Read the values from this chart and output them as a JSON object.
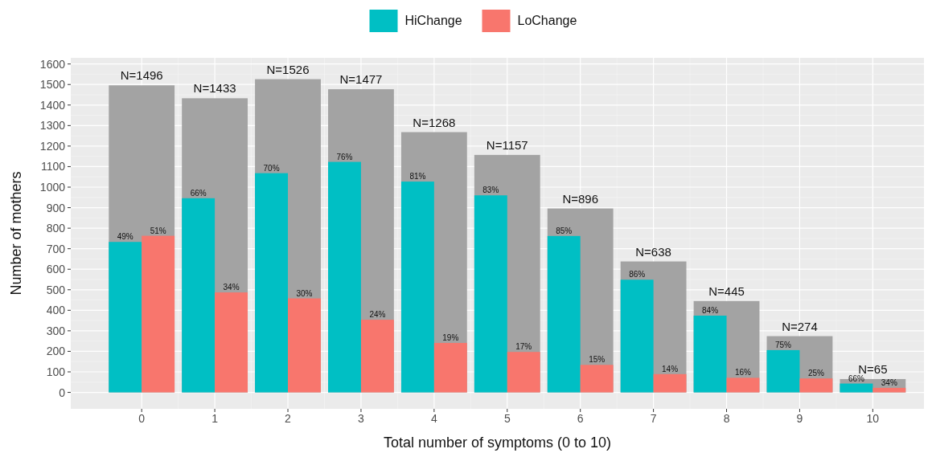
{
  "chart_data": {
    "type": "bar",
    "xlabel": "Total number of symptoms (0 to 10)",
    "ylabel": "Number of mothers",
    "x": [
      0,
      1,
      2,
      3,
      4,
      5,
      6,
      7,
      8,
      9,
      10
    ],
    "series": [
      {
        "color": "#a3a3a3",
        "values": [
          1496,
          1433,
          1526,
          1477,
          1268,
          1157,
          896,
          638,
          445,
          274,
          65
        ],
        "value_labels": [
          "N=1496",
          "N=1433",
          "N=1526",
          "N=1477",
          "N=1268",
          "N=1157",
          "N=896",
          "N=638",
          "N=445",
          "N=274",
          "N=65"
        ]
      },
      {
        "name": "HiChange",
        "color": "#00bfc4",
        "values": [
          733,
          946,
          1068,
          1123,
          1027,
          960,
          762,
          549,
          374,
          206,
          43
        ]
      },
      {
        "name": "LoChange",
        "color": "#f8766d",
        "values": [
          763,
          487,
          458,
          354,
          241,
          197,
          134,
          89,
          71,
          68,
          22
        ]
      }
    ],
    "annotations": [
      {
        "text": "49%",
        "x": 0,
        "y": 733
      },
      {
        "text": "66%",
        "x": 1,
        "y": 946
      },
      {
        "text": "70%",
        "x": 2,
        "y": 1068
      },
      {
        "text": "76%",
        "x": 3,
        "y": 1123
      },
      {
        "text": "81%",
        "x": 4,
        "y": 1027
      },
      {
        "text": "83%",
        "x": 5,
        "y": 960
      },
      {
        "text": "85%",
        "x": 6,
        "y": 762
      },
      {
        "text": "86%",
        "x": 7,
        "y": 549
      },
      {
        "text": "84%",
        "x": 8,
        "y": 374
      },
      {
        "text": "75%",
        "x": 9,
        "y": 206
      },
      {
        "text": "66%",
        "x": 10,
        "y": 43
      },
      {
        "text": "51%",
        "x": 0,
        "y": 763
      },
      {
        "text": "34%",
        "x": 1,
        "y": 487
      },
      {
        "text": "30%",
        "x": 2,
        "y": 458
      },
      {
        "text": "24%",
        "x": 3,
        "y": 354
      },
      {
        "text": "19%",
        "x": 4,
        "y": 241
      },
      {
        "text": "17%",
        "x": 5,
        "y": 197
      },
      {
        "text": "15%",
        "x": 6,
        "y": 134
      },
      {
        "text": "14%",
        "x": 7,
        "y": 89
      },
      {
        "text": "16%",
        "x": 8,
        "y": 71
      },
      {
        "text": "25%",
        "x": 9,
        "y": 68
      },
      {
        "text": "34%",
        "x": 10,
        "y": 22
      }
    ],
    "xlim": [
      -0.97,
      10.7
    ],
    "xticks": [
      0,
      1,
      2,
      3,
      4,
      5,
      6,
      7,
      8,
      9,
      10
    ],
    "ylim": [
      -80,
      1630
    ],
    "yticks": [
      0,
      100,
      200,
      300,
      400,
      500,
      600,
      700,
      800,
      900,
      1000,
      1100,
      1200,
      1300,
      1400,
      1500,
      1600
    ],
    "grid": true,
    "legend": "top"
  }
}
